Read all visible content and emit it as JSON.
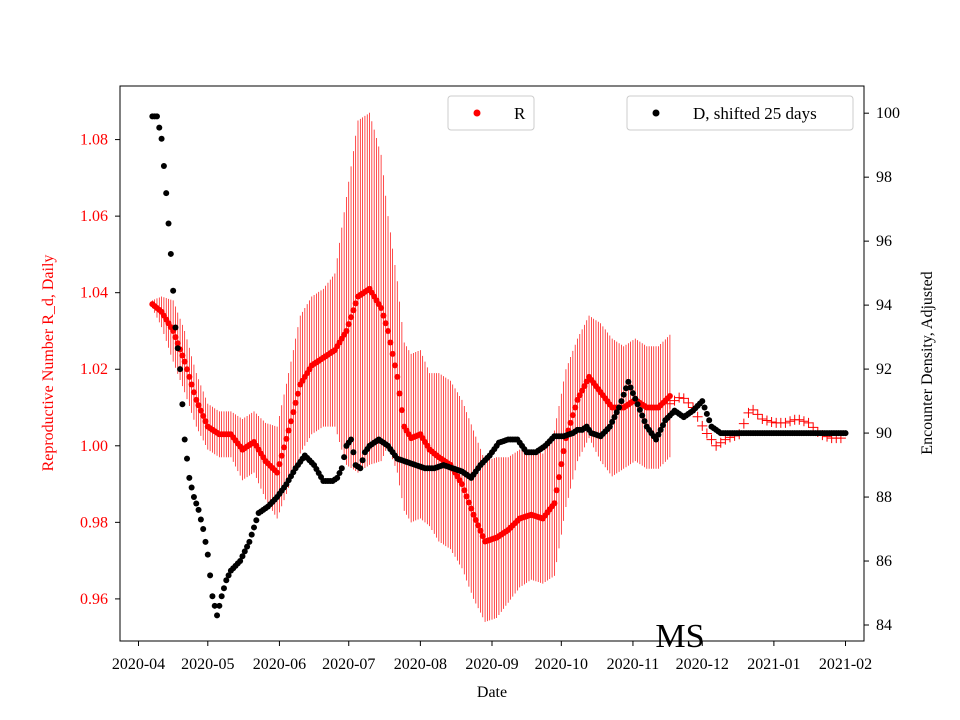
{
  "colors": {
    "r_series": "#ff0000",
    "d_series": "#000000",
    "axes": "#000000",
    "background": "#ffffff",
    "legend_border": "#cccccc"
  },
  "chart_data": {
    "type": "scatter",
    "xlabel": "Date",
    "ylabel_left": "Reproductive Number R_d, Daily",
    "ylabel_right": "Encounter Density, Adjusted",
    "annotation": "MS",
    "x_ticks": [
      "2020-04",
      "2020-05",
      "2020-06",
      "2020-07",
      "2020-08",
      "2020-09",
      "2020-10",
      "2020-11",
      "2020-12",
      "2021-01",
      "2021-02"
    ],
    "x_tick_days": [
      0,
      30,
      61,
      91,
      122,
      153,
      183,
      214,
      244,
      275,
      306
    ],
    "xlim_days": [
      -8,
      314
    ],
    "ylim_left": [
      0.949,
      1.094
    ],
    "yticks_left": [
      "0.96",
      "0.98",
      "1.00",
      "1.02",
      "1.04",
      "1.06",
      "1.08"
    ],
    "ylim_right": [
      83.5,
      100.85
    ],
    "yticks_right": [
      "84",
      "86",
      "88",
      "90",
      "92",
      "94",
      "96",
      "98",
      "100"
    ],
    "legend_left": {
      "label": "R",
      "location": "top-center"
    },
    "legend_right": {
      "label": "D, shifted 25 days",
      "location": "top-right"
    },
    "series": [
      {
        "name": "R",
        "axis": "left",
        "color": "#ff0000",
        "marker": "dot-with-errorbar",
        "start_day": 6,
        "end_day": 230,
        "x_days": [
          6,
          10,
          15,
          20,
          25,
          30,
          35,
          40,
          45,
          50,
          55,
          60,
          65,
          70,
          75,
          80,
          85,
          90,
          95,
          100,
          105,
          108,
          112,
          115,
          118,
          122,
          126,
          130,
          135,
          140,
          145,
          150,
          155,
          160,
          165,
          170,
          175,
          180,
          185,
          190,
          195,
          200,
          205,
          210,
          215,
          220,
          225,
          230
        ],
        "values": [
          1.037,
          1.035,
          1.03,
          1.022,
          1.012,
          1.005,
          1.003,
          1.003,
          0.999,
          1.001,
          0.996,
          0.993,
          1.004,
          1.016,
          1.021,
          1.023,
          1.025,
          1.03,
          1.039,
          1.041,
          1.036,
          1.03,
          1.018,
          1.005,
          1.002,
          1.003,
          0.999,
          0.997,
          0.995,
          0.99,
          0.982,
          0.975,
          0.976,
          0.978,
          0.981,
          0.982,
          0.981,
          0.985,
          1.002,
          1.012,
          1.018,
          1.014,
          1.01,
          1.01,
          1.012,
          1.01,
          1.01,
          1.013
        ],
        "err_half": [
          0.001,
          0.004,
          0.008,
          0.008,
          0.007,
          0.006,
          0.006,
          0.006,
          0.008,
          0.008,
          0.01,
          0.012,
          0.015,
          0.018,
          0.018,
          0.018,
          0.02,
          0.035,
          0.046,
          0.046,
          0.04,
          0.03,
          0.025,
          0.022,
          0.022,
          0.022,
          0.02,
          0.022,
          0.022,
          0.022,
          0.022,
          0.021,
          0.021,
          0.019,
          0.018,
          0.017,
          0.017,
          0.019,
          0.018,
          0.016,
          0.016,
          0.018,
          0.018,
          0.016,
          0.016,
          0.016,
          0.016,
          0.016
        ]
      },
      {
        "name": "R (plus markers)",
        "axis": "left",
        "color": "#ff0000",
        "marker": "plus",
        "x_days": [
          230,
          235,
          240,
          245,
          250,
          255,
          260,
          265,
          270,
          275,
          280,
          285,
          290,
          295,
          300,
          305
        ],
        "values": [
          1.011,
          1.013,
          1.01,
          1.004,
          1.0,
          1.002,
          1.003,
          1.01,
          1.007,
          1.006,
          1.006,
          1.007,
          1.006,
          1.003,
          1.002,
          1.002
        ]
      },
      {
        "name": "D, shifted 25 days",
        "axis": "right",
        "color": "#000000",
        "marker": "dot",
        "start_day": 6,
        "end_day": 306,
        "x_days": [
          6,
          8,
          10,
          12,
          14,
          16,
          18,
          20,
          22,
          24,
          26,
          28,
          30,
          32,
          34,
          36,
          38,
          40,
          44,
          48,
          52,
          56,
          60,
          64,
          68,
          72,
          76,
          80,
          84,
          86,
          88,
          90,
          92,
          94,
          96,
          98,
          100,
          104,
          108,
          112,
          116,
          120,
          124,
          128,
          132,
          136,
          140,
          144,
          148,
          152,
          156,
          160,
          164,
          168,
          172,
          176,
          180,
          184,
          188,
          190,
          192,
          194,
          196,
          200,
          204,
          208,
          212,
          216,
          220,
          224,
          228,
          232,
          236,
          240,
          244,
          248,
          252,
          256,
          260,
          270,
          280,
          290,
          306
        ],
        "values": [
          99.9,
          99.9,
          99.2,
          97.5,
          95.6,
          93.3,
          92.0,
          89.8,
          88.6,
          88.0,
          87.6,
          87.0,
          86.2,
          84.9,
          84.3,
          84.9,
          85.4,
          85.7,
          86.0,
          86.6,
          87.5,
          87.7,
          88.0,
          88.4,
          88.9,
          89.3,
          89.0,
          88.5,
          88.5,
          88.6,
          88.9,
          89.6,
          89.8,
          89.0,
          88.9,
          89.4,
          89.6,
          89.8,
          89.6,
          89.2,
          89.1,
          89.0,
          88.9,
          88.9,
          89.0,
          88.9,
          88.8,
          88.6,
          89.0,
          89.3,
          89.7,
          89.8,
          89.8,
          89.4,
          89.4,
          89.6,
          89.9,
          89.9,
          90.0,
          90.1,
          90.1,
          90.2,
          90.0,
          89.9,
          90.2,
          90.8,
          91.6,
          90.9,
          90.2,
          89.8,
          90.4,
          90.7,
          90.5,
          90.7,
          91.0,
          90.2,
          90.0,
          90.0,
          90.0,
          90.0,
          90.0,
          90.0,
          90.0
        ]
      }
    ]
  }
}
